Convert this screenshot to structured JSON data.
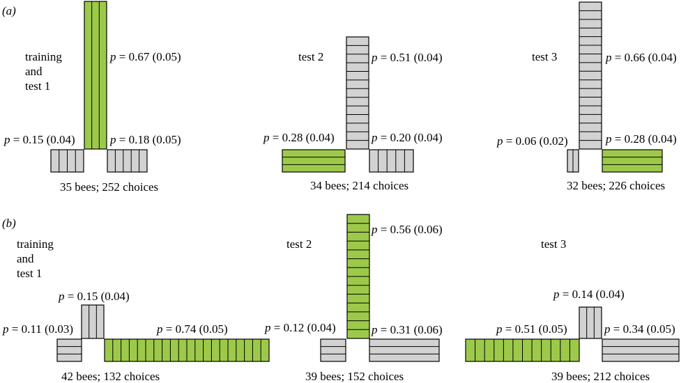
{
  "colors": {
    "green": "#9dc94a",
    "grey": "#d2d2d2",
    "stroke": "#000000"
  },
  "panels": [
    {
      "label": "(a)",
      "diagrams": [
        {
          "title": [
            "training",
            "and",
            "test 1"
          ],
          "caption": "35 bees; 252 choices",
          "arms": {
            "up": {
              "p": "0.67",
              "se": "(0.05)",
              "color": "green",
              "stripes": "vertical"
            },
            "left": {
              "p": "0.15",
              "se": "(0.04)",
              "color": "grey",
              "stripes": "vertical"
            },
            "right": {
              "p": "0.18",
              "se": "(0.05)",
              "color": "grey",
              "stripes": "vertical"
            }
          }
        },
        {
          "title": [
            "test 2"
          ],
          "caption": "34 bees; 214 choices",
          "arms": {
            "up": {
              "p": "0.51",
              "se": "(0.04)",
              "color": "grey",
              "stripes": "horizontal"
            },
            "left": {
              "p": "0.28",
              "se": "(0.04)",
              "color": "green",
              "stripes": "horizontal"
            },
            "right": {
              "p": "0.20",
              "se": "(0.04)",
              "color": "grey",
              "stripes": "vertical"
            }
          }
        },
        {
          "title": [
            "test 3"
          ],
          "caption": "32 bees;  226 choices",
          "arms": {
            "up": {
              "p": "0.66",
              "se": "(0.04)",
              "color": "grey",
              "stripes": "horizontal"
            },
            "left": {
              "p": "0.06",
              "se": "(0.02)",
              "color": "grey",
              "stripes": "vertical"
            },
            "right": {
              "p": "0.28",
              "se": "(0.04)",
              "color": "green",
              "stripes": "horizontal"
            }
          }
        }
      ]
    },
    {
      "label": "(b)",
      "diagrams": [
        {
          "title": [
            "training",
            "and",
            "test 1"
          ],
          "caption": "42 bees; 132 choices",
          "arms": {
            "up": {
              "p": "0.15",
              "se": "(0.04)",
              "color": "grey",
              "stripes": "vertical"
            },
            "left": {
              "p": "0.11",
              "se": "(0.03)",
              "color": "grey",
              "stripes": "horizontal"
            },
            "right": {
              "p": "0.74",
              "se": "(0.05)",
              "color": "green",
              "stripes": "vertical"
            }
          }
        },
        {
          "title": [
            "test 2"
          ],
          "caption": "39 bees; 152 choices",
          "arms": {
            "up": {
              "p": "0.56",
              "se": "(0.06)",
              "color": "green",
              "stripes": "horizontal"
            },
            "left": {
              "p": "0.12",
              "se": "(0.04)",
              "color": "grey",
              "stripes": "horizontal"
            },
            "right": {
              "p": "0.31",
              "se": "(0.06)",
              "color": "grey",
              "stripes": "horizontal"
            }
          }
        },
        {
          "title": [
            "test 3"
          ],
          "caption": "39 bees; 212 choices",
          "arms": {
            "up": {
              "p": "0.14",
              "se": "(0.04)",
              "color": "grey",
              "stripes": "vertical"
            },
            "left": {
              "p": "0.51",
              "se": "(0.05)",
              "color": "green",
              "stripes": "vertical"
            },
            "right": {
              "p": "0.34",
              "se": "(0.05)",
              "color": "grey",
              "stripes": "horizontal"
            }
          }
        }
      ]
    }
  ]
}
